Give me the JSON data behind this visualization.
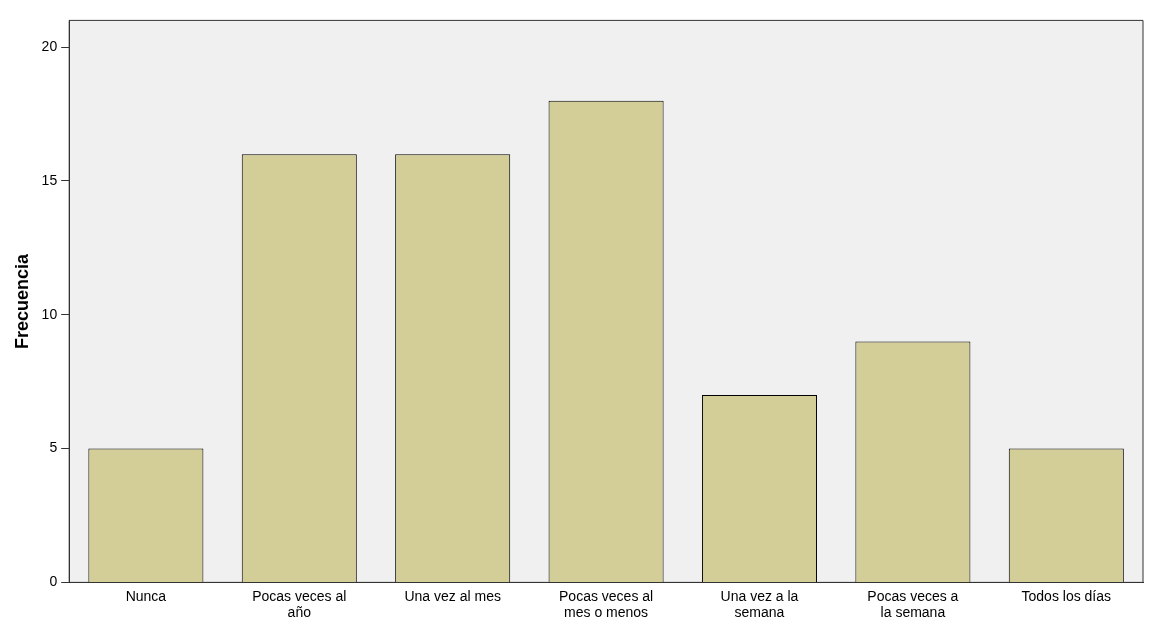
{
  "chart_data": {
    "type": "bar",
    "ylabel": "Frecuencia",
    "categories": [
      "Nunca",
      "Pocas veces al año",
      "Una vez al mes",
      "Pocas veces al mes o menos",
      "Una vez a la semana",
      "Pocas veces a la semana",
      "Todos los días"
    ],
    "values": [
      5,
      16,
      16,
      18,
      7,
      9,
      5
    ],
    "color": "#d3ce97",
    "ylim": [
      0,
      21
    ],
    "yticks": [
      0,
      5,
      10,
      15,
      20
    ],
    "grid": false,
    "legend": false
  }
}
